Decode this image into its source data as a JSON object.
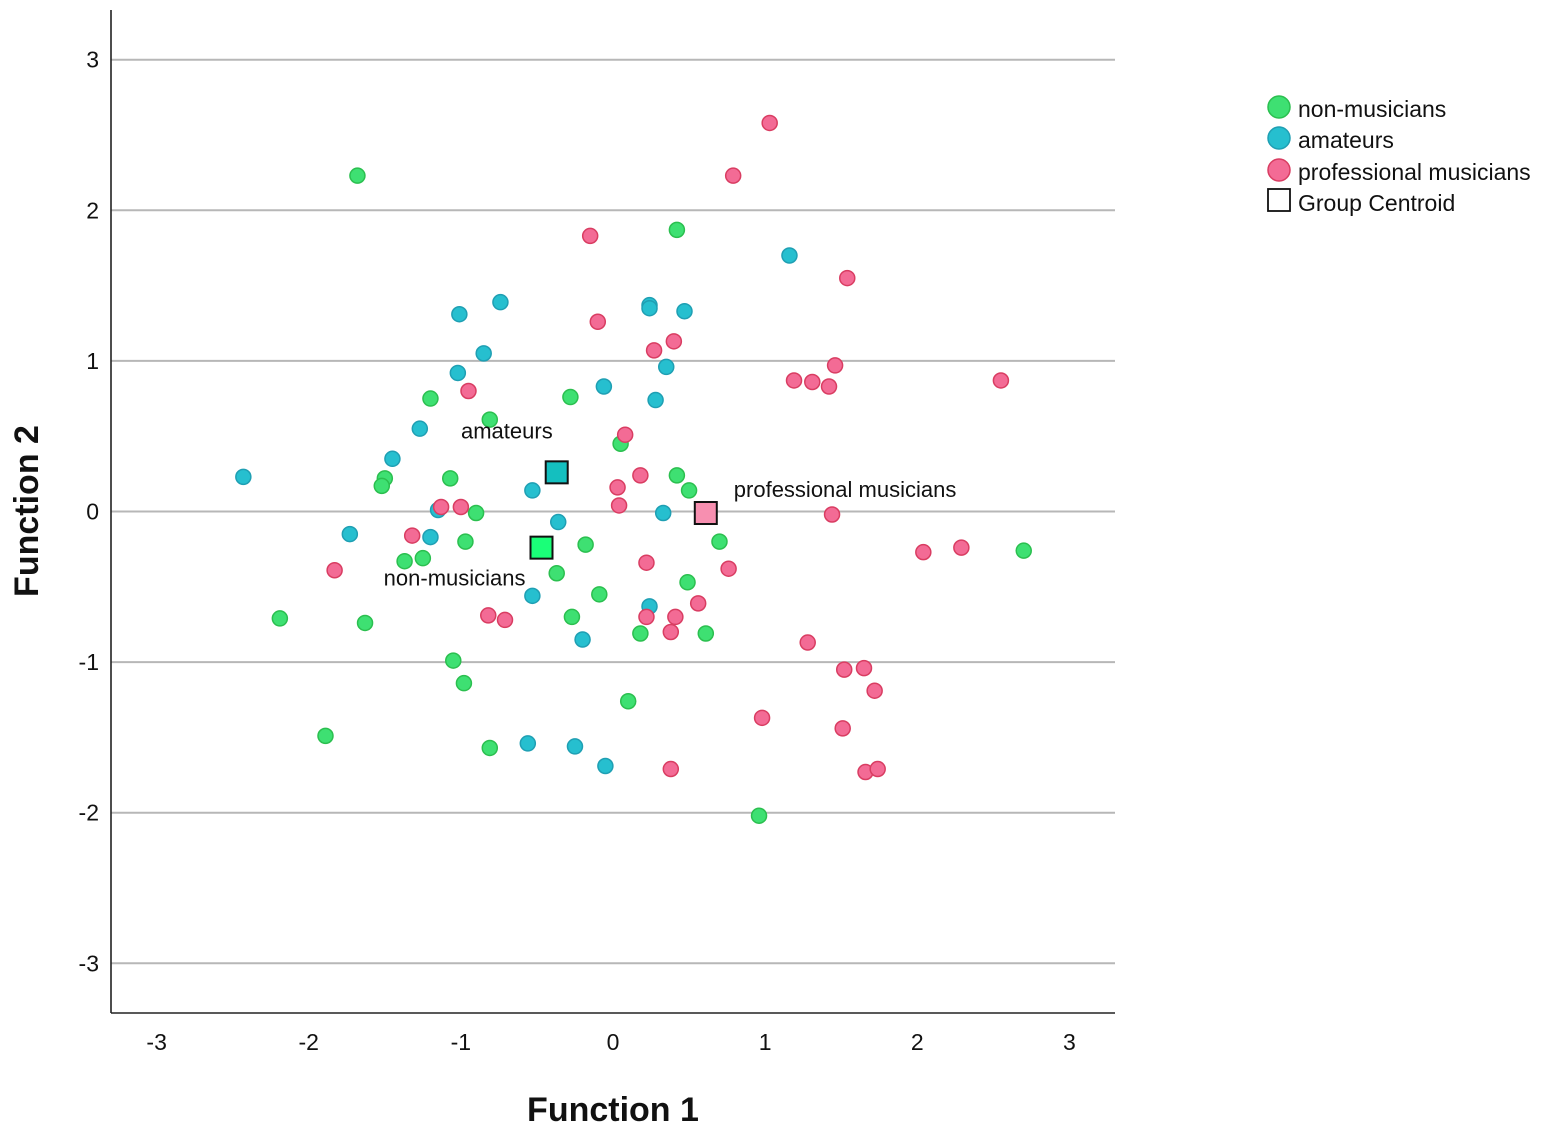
{
  "chart_data": {
    "type": "scatter",
    "xlabel": "Function 1",
    "ylabel": "Function 2",
    "xlim": [
      -3.3,
      3.3
    ],
    "ylim": [
      -3.33,
      3.33
    ],
    "x_ticks": [
      -3,
      -2,
      -1,
      0,
      1,
      2,
      3
    ],
    "y_ticks": [
      -3,
      -2,
      -1,
      0,
      1,
      2,
      3
    ],
    "grid": "horizontal",
    "legend_position": "top-right",
    "legend": [
      {
        "label": "non-musicians",
        "marker": "circle",
        "series": 0
      },
      {
        "label": "amateurs",
        "marker": "circle",
        "series": 1
      },
      {
        "label": "professional musicians",
        "marker": "circle",
        "series": 2
      },
      {
        "label": "Group Centroid",
        "marker": "square",
        "series": null
      }
    ],
    "series": [
      {
        "name": "non-musicians",
        "fill": "#3ee072",
        "stroke": "#2bbf4f",
        "points": [
          [
            -1.68,
            2.23
          ],
          [
            0.42,
            1.87
          ],
          [
            -1.2,
            0.75
          ],
          [
            -0.81,
            0.61
          ],
          [
            -0.28,
            0.76
          ],
          [
            0.05,
            0.45
          ],
          [
            -1.5,
            0.22
          ],
          [
            -1.52,
            0.17
          ],
          [
            -1.07,
            0.22
          ],
          [
            -0.9,
            -0.01
          ],
          [
            -0.97,
            -0.2
          ],
          [
            -1.37,
            -0.33
          ],
          [
            -1.25,
            -0.31
          ],
          [
            0.42,
            0.24
          ],
          [
            0.5,
            0.14
          ],
          [
            -0.18,
            -0.22
          ],
          [
            -0.37,
            -0.41
          ],
          [
            0.7,
            -0.2
          ],
          [
            0.49,
            -0.47
          ],
          [
            -0.09,
            -0.55
          ],
          [
            -0.27,
            -0.7
          ],
          [
            0.18,
            -0.81
          ],
          [
            0.61,
            -0.81
          ],
          [
            -2.19,
            -0.71
          ],
          [
            -1.63,
            -0.74
          ],
          [
            -1.05,
            -0.99
          ],
          [
            -0.98,
            -1.14
          ],
          [
            0.1,
            -1.26
          ],
          [
            -1.89,
            -1.49
          ],
          [
            -0.81,
            -1.57
          ],
          [
            0.96,
            -2.02
          ],
          [
            2.7,
            -0.26
          ]
        ]
      },
      {
        "name": "amateurs",
        "fill": "#26bfcf",
        "stroke": "#1f9fb3",
        "points": [
          [
            1.16,
            1.7
          ],
          [
            -0.74,
            1.39
          ],
          [
            -1.01,
            1.31
          ],
          [
            0.24,
            1.37
          ],
          [
            0.24,
            1.35
          ],
          [
            0.47,
            1.33
          ],
          [
            -0.85,
            1.05
          ],
          [
            -1.02,
            0.92
          ],
          [
            -0.06,
            0.83
          ],
          [
            0.35,
            0.96
          ],
          [
            0.28,
            0.74
          ],
          [
            -1.27,
            0.55
          ],
          [
            -1.45,
            0.35
          ],
          [
            -2.43,
            0.23
          ],
          [
            -0.53,
            0.14
          ],
          [
            -1.15,
            0.01
          ],
          [
            -1.73,
            -0.15
          ],
          [
            -1.2,
            -0.17
          ],
          [
            -0.36,
            -0.07
          ],
          [
            0.33,
            -0.01
          ],
          [
            -0.53,
            -0.56
          ],
          [
            0.24,
            -0.63
          ],
          [
            -0.2,
            -0.85
          ],
          [
            -0.56,
            -1.54
          ],
          [
            -0.25,
            -1.56
          ],
          [
            -0.05,
            -1.69
          ]
        ]
      },
      {
        "name": "professional musicians",
        "fill": "#f36b95",
        "stroke": "#d93d62",
        "points": [
          [
            1.03,
            2.58
          ],
          [
            0.79,
            2.23
          ],
          [
            -0.15,
            1.83
          ],
          [
            1.54,
            1.55
          ],
          [
            -0.1,
            1.26
          ],
          [
            0.4,
            1.13
          ],
          [
            0.27,
            1.07
          ],
          [
            1.46,
            0.97
          ],
          [
            1.19,
            0.87
          ],
          [
            1.31,
            0.86
          ],
          [
            1.42,
            0.83
          ],
          [
            2.55,
            0.87
          ],
          [
            -0.95,
            0.8
          ],
          [
            0.08,
            0.51
          ],
          [
            0.18,
            0.24
          ],
          [
            0.03,
            0.16
          ],
          [
            0.04,
            0.04
          ],
          [
            -1.13,
            0.03
          ],
          [
            -1.0,
            0.03
          ],
          [
            -1.32,
            -0.16
          ],
          [
            1.44,
            -0.02
          ],
          [
            2.04,
            -0.27
          ],
          [
            2.29,
            -0.24
          ],
          [
            -1.83,
            -0.39
          ],
          [
            0.22,
            -0.34
          ],
          [
            0.76,
            -0.38
          ],
          [
            -0.82,
            -0.69
          ],
          [
            -0.71,
            -0.72
          ],
          [
            0.22,
            -0.7
          ],
          [
            0.41,
            -0.7
          ],
          [
            0.56,
            -0.61
          ],
          [
            0.38,
            -0.8
          ],
          [
            1.28,
            -0.87
          ],
          [
            1.52,
            -1.05
          ],
          [
            1.65,
            -1.04
          ],
          [
            1.72,
            -1.19
          ],
          [
            0.98,
            -1.37
          ],
          [
            1.51,
            -1.44
          ],
          [
            0.38,
            -1.71
          ],
          [
            1.66,
            -1.73
          ],
          [
            1.74,
            -1.71
          ]
        ]
      }
    ],
    "centroids": [
      {
        "label": "non-musicians",
        "x": -0.47,
        "y": -0.24,
        "fill": "#1aff78",
        "label_side": "below-left"
      },
      {
        "label": "amateurs",
        "x": -0.37,
        "y": 0.26,
        "fill": "#14bfbf",
        "label_side": "above-left"
      },
      {
        "label": "professional musicians",
        "x": 0.61,
        "y": -0.01,
        "fill": "#f78fb0",
        "label_side": "above-right"
      }
    ]
  }
}
